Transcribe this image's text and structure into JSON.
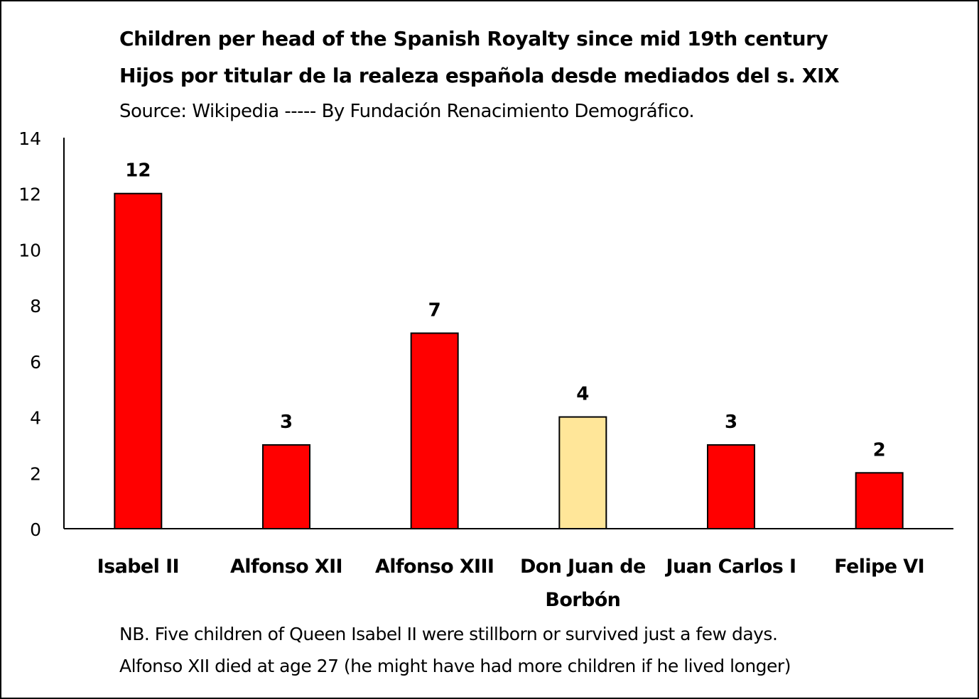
{
  "chart_data": {
    "type": "bar",
    "title": "Children per head of the Spanish Royalty since mid 19th century",
    "subtitle": "Hijos por titular de la realeza española desde mediados del s. XIX",
    "source": "Source: Wikipedia -----  By Fundación Renacimiento Demográfico.",
    "categories": [
      [
        "Isabel II"
      ],
      [
        "Alfonso XII"
      ],
      [
        "Alfonso XIII"
      ],
      [
        "Don Juan de",
        "Borbón"
      ],
      [
        "Juan Carlos I"
      ],
      [
        "Felipe VI"
      ]
    ],
    "values": [
      12,
      3,
      7,
      4,
      3,
      2
    ],
    "data_labels": [
      "12",
      "3",
      "7",
      "4",
      "3",
      "2"
    ],
    "colors": [
      "#ff0000",
      "#ff0000",
      "#ff0000",
      "#ffe699",
      "#ff0000",
      "#ff0000"
    ],
    "ylim": [
      0,
      14
    ],
    "yticks": [
      "0",
      "2",
      "4",
      "6",
      "8",
      "10",
      "12",
      "14"
    ],
    "grid": false,
    "notes": [
      "NB. Five children of Queen Isabel II were stillborn or survived just a few days.",
      "Alfonso XII died at age 27 (he might have had more children if he lived longer)"
    ]
  }
}
